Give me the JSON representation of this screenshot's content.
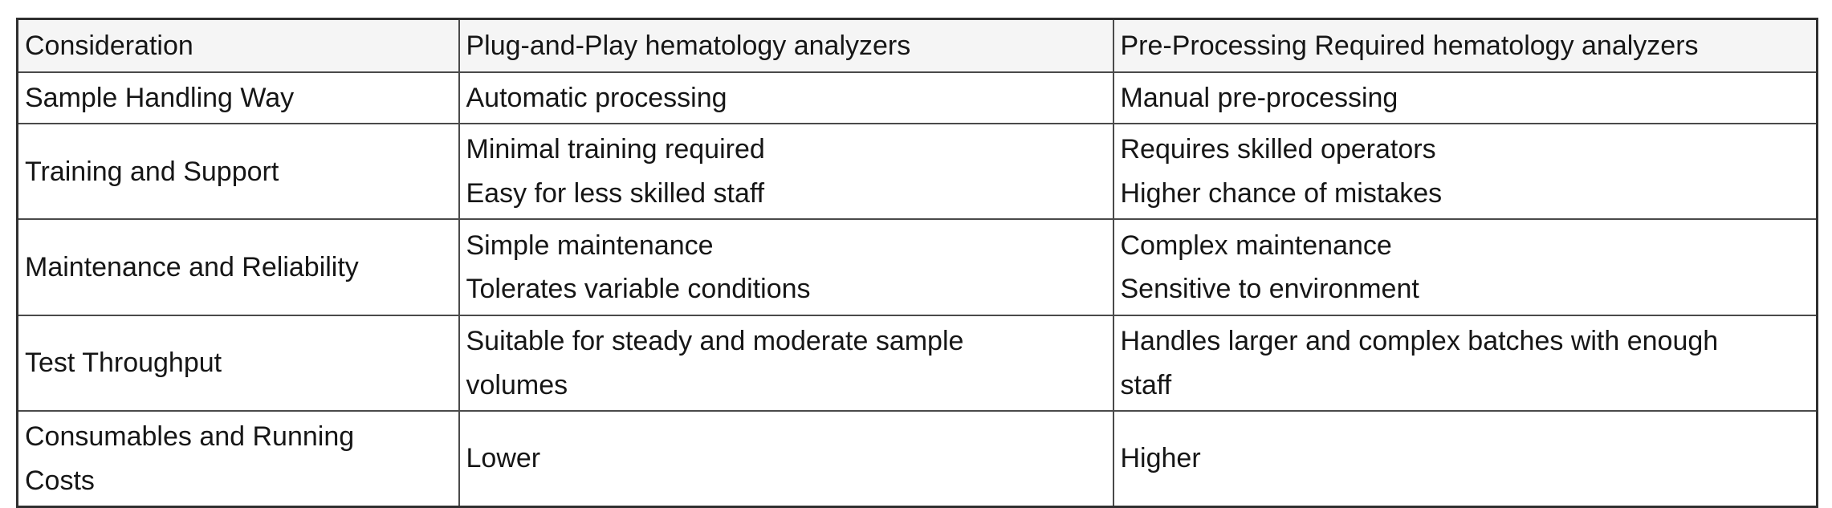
{
  "page": {
    "background_color": "#ffffff",
    "text_color": "#161616",
    "header_bg_color": "#f5f5f5",
    "grid_border_color": "#4a4a4a"
  },
  "table": {
    "columns": [
      "Consideration",
      "Plug-and-Play hematology analyzers",
      "Pre-Processing Required hematology analyzers"
    ],
    "rows": [
      {
        "consideration": "Sample Handling Way",
        "plug_and_play": "Automatic processing",
        "pre_processing": "Manual pre-processing"
      },
      {
        "consideration": "Training and Support",
        "plug_and_play": [
          "Minimal training required",
          "Easy for less skilled staff"
        ],
        "pre_processing": [
          "Requires skilled operators",
          "Higher chance of mistakes"
        ]
      },
      {
        "consideration": "Maintenance and Reliability",
        "plug_and_play": [
          "Simple maintenance",
          "Tolerates variable conditions"
        ],
        "pre_processing": [
          "Complex maintenance",
          "Sensitive to environment"
        ]
      },
      {
        "consideration": "Test Throughput",
        "plug_and_play": "Suitable for steady and moderate sample volumes",
        "pre_processing": "Handles larger and complex batches with enough staff"
      },
      {
        "consideration": "Consumables and Running Costs",
        "plug_and_play": "Lower",
        "pre_processing": "Higher"
      }
    ]
  }
}
